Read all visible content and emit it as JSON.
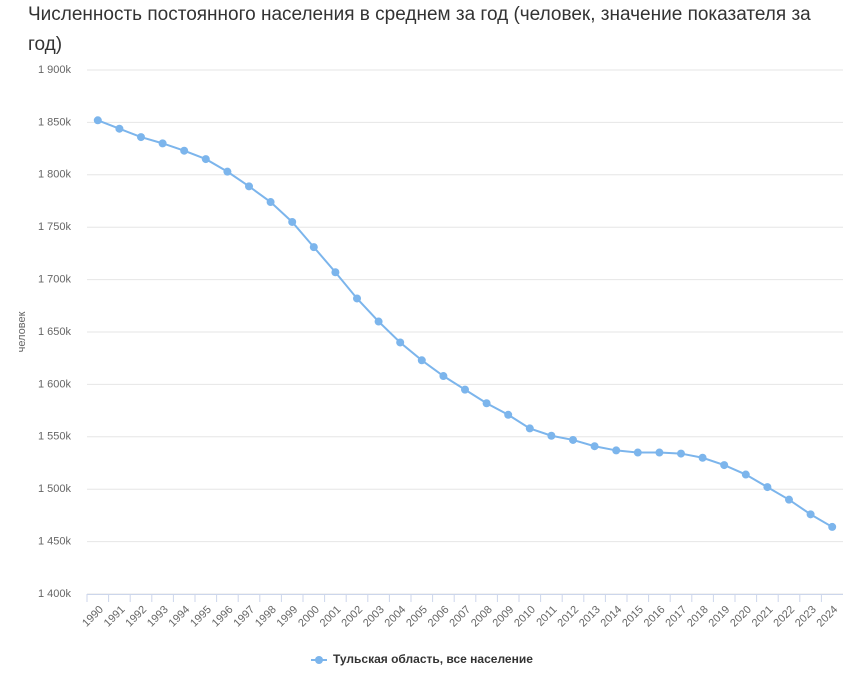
{
  "chart_data": {
    "type": "line",
    "title": "Численность постоянного населения в среднем за год (человек, значение показателя за год)",
    "y_label": "человек",
    "categories": [
      "1990",
      "1991",
      "1992",
      "1993",
      "1994",
      "1995",
      "1996",
      "1997",
      "1998",
      "1999",
      "2000",
      "2001",
      "2002",
      "2003",
      "2004",
      "2005",
      "2006",
      "2007",
      "2008",
      "2009",
      "2010",
      "2011",
      "2012",
      "2013",
      "2014",
      "2015",
      "2016",
      "2017",
      "2018",
      "2019",
      "2020",
      "2021",
      "2022",
      "2023",
      "2024"
    ],
    "series": [
      {
        "name": "Тульская область, все население",
        "color": "#7cb5ec",
        "values": [
          1852000,
          1844000,
          1836000,
          1830000,
          1823000,
          1815000,
          1803000,
          1789000,
          1774000,
          1755000,
          1731000,
          1707000,
          1682000,
          1660000,
          1640000,
          1623000,
          1608000,
          1595000,
          1582000,
          1571000,
          1558000,
          1551000,
          1547000,
          1541000,
          1537000,
          1535000,
          1535000,
          1534000,
          1530000,
          1523000,
          1514000,
          1502000,
          1490000,
          1476000,
          1464000
        ]
      }
    ],
    "ylim": [
      1400000,
      1900000
    ],
    "yticks": [
      {
        "value": 1400000,
        "label": "1 400k"
      },
      {
        "value": 1450000,
        "label": "1 450k"
      },
      {
        "value": 1500000,
        "label": "1 500k"
      },
      {
        "value": 1550000,
        "label": "1 550k"
      },
      {
        "value": 1600000,
        "label": "1 600k"
      },
      {
        "value": 1650000,
        "label": "1 650k"
      },
      {
        "value": 1700000,
        "label": "1 700k"
      },
      {
        "value": 1750000,
        "label": "1 750k"
      },
      {
        "value": 1800000,
        "label": "1 800k"
      },
      {
        "value": 1850000,
        "label": "1 850k"
      },
      {
        "value": 1900000,
        "label": "1 900k"
      }
    ],
    "grid": true
  }
}
